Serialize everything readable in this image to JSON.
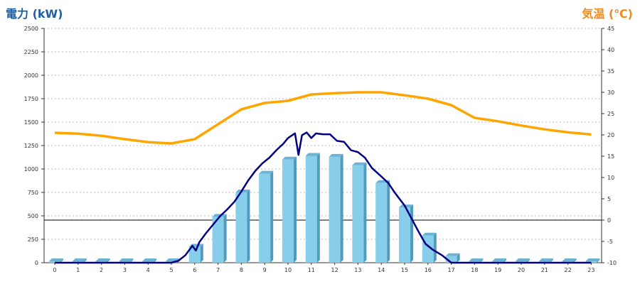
{
  "chart_data": {
    "type": "bar",
    "title": "",
    "ylabel_left": "電力 (kW)",
    "ylabel_right": "気温 (℃)",
    "x": [
      0,
      1,
      2,
      3,
      4,
      5,
      6,
      7,
      8,
      9,
      10,
      11,
      12,
      13,
      14,
      15,
      16,
      17,
      18,
      19,
      20,
      21,
      22,
      23
    ],
    "categories": [
      "0",
      "1",
      "2",
      "3",
      "4",
      "5",
      "6",
      "7",
      "8",
      "9",
      "10",
      "11",
      "12",
      "13",
      "14",
      "15",
      "16",
      "17",
      "18",
      "19",
      "20",
      "21",
      "22",
      "23"
    ],
    "ylim_left": [
      0,
      2500
    ],
    "yticks_left": [
      "0",
      "250",
      "500",
      "750",
      "1000",
      "1250",
      "1500",
      "1750",
      "2000",
      "2250",
      "2500"
    ],
    "ylim_right": [
      -10,
      45
    ],
    "yticks_right": [
      "-10",
      "-5",
      "0",
      "5",
      "10",
      "15",
      "20",
      "25",
      "30",
      "35",
      "40",
      "45"
    ],
    "grid": true,
    "bars": {
      "color": "#87ceeb",
      "values": [
        15,
        15,
        15,
        15,
        15,
        15,
        170,
        490,
        750,
        950,
        1100,
        1140,
        1130,
        1040,
        850,
        590,
        290,
        70,
        15,
        15,
        15,
        15,
        15,
        15
      ]
    },
    "power_line": {
      "color": "#000080",
      "points": [
        [
          0,
          0
        ],
        [
          5,
          0
        ],
        [
          5.3,
          20
        ],
        [
          5.6,
          80
        ],
        [
          5.9,
          180
        ],
        [
          6.05,
          130
        ],
        [
          6.2,
          220
        ],
        [
          6.5,
          320
        ],
        [
          6.8,
          410
        ],
        [
          7.1,
          500
        ],
        [
          7.4,
          570
        ],
        [
          7.7,
          650
        ],
        [
          8,
          760
        ],
        [
          8.3,
          880
        ],
        [
          8.6,
          980
        ],
        [
          8.9,
          1060
        ],
        [
          9.2,
          1120
        ],
        [
          9.5,
          1200
        ],
        [
          9.8,
          1270
        ],
        [
          10,
          1330
        ],
        [
          10.3,
          1380
        ],
        [
          10.45,
          1150
        ],
        [
          10.6,
          1360
        ],
        [
          10.8,
          1390
        ],
        [
          11,
          1330
        ],
        [
          11.2,
          1380
        ],
        [
          11.5,
          1370
        ],
        [
          11.8,
          1370
        ],
        [
          12.1,
          1300
        ],
        [
          12.4,
          1290
        ],
        [
          12.7,
          1200
        ],
        [
          13,
          1180
        ],
        [
          13.3,
          1120
        ],
        [
          13.6,
          1010
        ],
        [
          14,
          920
        ],
        [
          14.3,
          850
        ],
        [
          14.6,
          740
        ],
        [
          15,
          610
        ],
        [
          15.3,
          470
        ],
        [
          15.6,
          330
        ],
        [
          15.9,
          200
        ],
        [
          16.2,
          140
        ],
        [
          16.6,
          80
        ],
        [
          17,
          0
        ],
        [
          23,
          0
        ]
      ]
    },
    "temperature_line": {
      "color": "#ffa500",
      "points": [
        [
          0,
          20.5
        ],
        [
          1,
          20.3
        ],
        [
          2,
          19.8
        ],
        [
          3,
          19
        ],
        [
          4,
          18.3
        ],
        [
          5,
          18
        ],
        [
          6,
          19
        ],
        [
          7,
          22.5
        ],
        [
          8,
          26
        ],
        [
          9,
          27.5
        ],
        [
          10,
          28
        ],
        [
          11,
          29.5
        ],
        [
          12,
          29.8
        ],
        [
          13,
          30
        ],
        [
          14,
          30
        ],
        [
          15,
          29.3
        ],
        [
          16,
          28.5
        ],
        [
          17,
          27
        ],
        [
          18,
          24
        ],
        [
          19,
          23.2
        ],
        [
          20,
          22.2
        ],
        [
          21,
          21.3
        ],
        [
          22,
          20.6
        ],
        [
          23,
          20.1
        ]
      ]
    },
    "zero_temperature_reference": 0
  }
}
